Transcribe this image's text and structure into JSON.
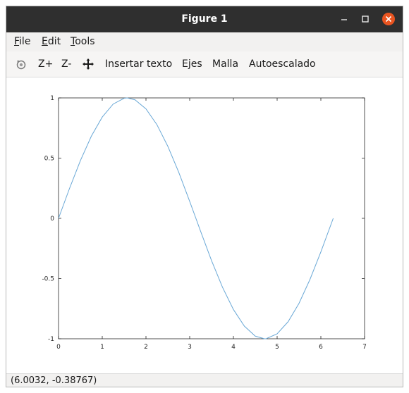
{
  "window": {
    "title": "Figure 1"
  },
  "menubar": {
    "items": [
      {
        "accel": "F",
        "rest": "ile"
      },
      {
        "accel": "E",
        "rest": "dit"
      },
      {
        "accel": "T",
        "rest": "ools"
      }
    ]
  },
  "toolbar": {
    "rotate_icon": "rotate-icon",
    "zoom_in_label": "Z+",
    "zoom_out_label": "Z-",
    "pan_icon": "pan-move-icon",
    "insert_text_label": "Insertar texto",
    "axes_label": "Ejes",
    "grid_label": "Malla",
    "autoscale_label": "Autoescalado"
  },
  "status": {
    "coordinates": "(6.0032, -0.38767)"
  },
  "colors": {
    "line": "#6aa8d6",
    "titlebar": "#2f2f2f",
    "close": "#e95420"
  },
  "chart_data": {
    "type": "line",
    "title": "",
    "xlabel": "",
    "ylabel": "",
    "xlim": [
      0,
      7
    ],
    "ylim": [
      -1,
      1
    ],
    "xticks": [
      0,
      1,
      2,
      3,
      4,
      5,
      6,
      7
    ],
    "yticks": [
      -1,
      -0.5,
      0,
      0.5,
      1
    ],
    "xtick_labels": [
      "0",
      "1",
      "2",
      "3",
      "4",
      "5",
      "6",
      "7"
    ],
    "ytick_labels": [
      "-1",
      "-0.5",
      "0",
      "0.5",
      "1"
    ],
    "grid": false,
    "series": [
      {
        "x": [
          0,
          0.25,
          0.5,
          0.75,
          1.0,
          1.25,
          1.5,
          1.571,
          1.75,
          2.0,
          2.25,
          2.5,
          2.75,
          3.0,
          3.142,
          3.25,
          3.5,
          3.75,
          4.0,
          4.25,
          4.5,
          4.712,
          4.75,
          5.0,
          5.25,
          5.5,
          5.75,
          6.0,
          6.283
        ],
        "y": [
          0,
          0.247,
          0.479,
          0.682,
          0.841,
          0.949,
          0.997,
          1.0,
          0.984,
          0.909,
          0.778,
          0.598,
          0.382,
          0.141,
          0.0,
          -0.108,
          -0.351,
          -0.572,
          -0.757,
          -0.895,
          -0.978,
          -1.0,
          -0.999,
          -0.959,
          -0.859,
          -0.706,
          -0.508,
          -0.279,
          0.0
        ]
      }
    ]
  }
}
